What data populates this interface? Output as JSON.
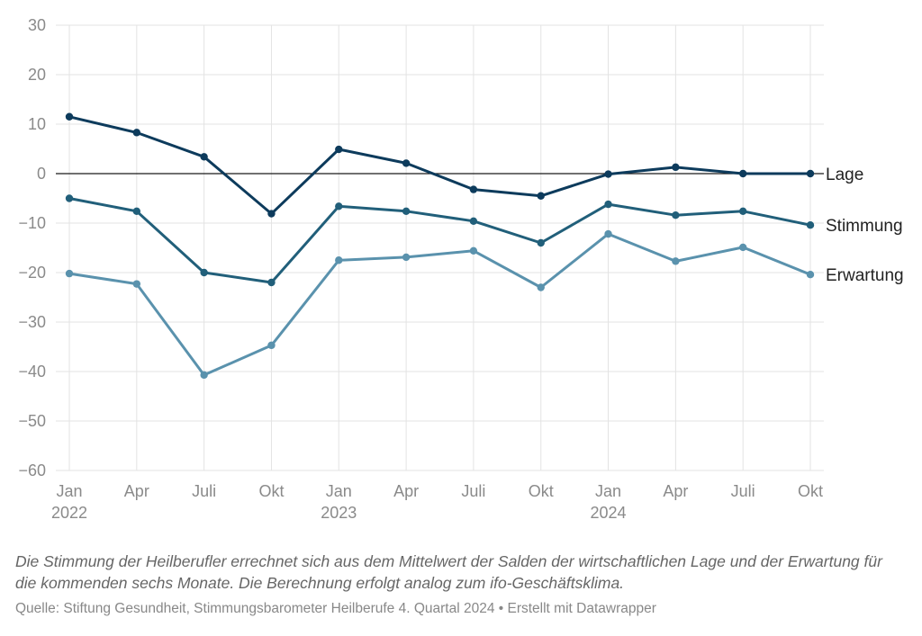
{
  "chart_data": {
    "type": "line",
    "title": "",
    "xlabel": "",
    "ylabel": "",
    "categories": [
      "Jan 2022",
      "Apr 2022",
      "Juli 2022",
      "Okt 2022",
      "Jan 2023",
      "Apr 2023",
      "Juli 2023",
      "Okt 2023",
      "Jan 2024",
      "Apr 2024",
      "Juli 2024",
      "Okt 2024"
    ],
    "x_tick_labels": [
      {
        "label": "Jan",
        "year": "2022"
      },
      {
        "label": "Apr",
        "year": ""
      },
      {
        "label": "Juli",
        "year": ""
      },
      {
        "label": "Okt",
        "year": ""
      },
      {
        "label": "Jan",
        "year": "2023"
      },
      {
        "label": "Apr",
        "year": ""
      },
      {
        "label": "Juli",
        "year": ""
      },
      {
        "label": "Okt",
        "year": ""
      },
      {
        "label": "Jan",
        "year": "2024"
      },
      {
        "label": "Apr",
        "year": ""
      },
      {
        "label": "Juli",
        "year": ""
      },
      {
        "label": "Okt",
        "year": ""
      }
    ],
    "ylim": [
      -60,
      30
    ],
    "y_ticks": [
      30,
      20,
      10,
      0,
      -10,
      -20,
      -30,
      -40,
      -50,
      -60
    ],
    "y_tick_labels": [
      "30",
      "20",
      "10",
      "0",
      "−10",
      "−20",
      "−30",
      "−40",
      "−50",
      "−60"
    ],
    "grid": true,
    "zero_line": true,
    "legend": "direct labels at line ends (right)",
    "series": [
      {
        "name": "Lage",
        "color": "#0d3b5c",
        "values": [
          11.5,
          8.3,
          3.4,
          -8.1,
          4.9,
          2.1,
          -3.2,
          -4.5,
          -0.1,
          1.3,
          0.0,
          0.0
        ]
      },
      {
        "name": "Stimmung",
        "color": "#215f7a",
        "values": [
          -5.0,
          -7.6,
          -20.0,
          -22.0,
          -6.6,
          -7.6,
          -9.6,
          -14.0,
          -6.2,
          -8.4,
          -7.6,
          -10.4
        ]
      },
      {
        "name": "Erwartung",
        "color": "#5a92ad",
        "values": [
          -20.2,
          -22.3,
          -40.7,
          -34.7,
          -17.5,
          -16.9,
          -15.6,
          -23.0,
          -12.2,
          -17.7,
          -14.9,
          -20.4
        ]
      }
    ]
  },
  "caption": "Die Stimmung der Heilberufler errechnet sich aus dem Mittelwert der Salden der wirtschaftlichen Lage und der Erwartung für die kommenden sechs Monate. Die Berechnung erfolgt analog zum ifo-Geschäftsklima.",
  "source": "Quelle: Stiftung Gesundheit, Stimmungsbarometer Heilberufe 4. Quartal 2024 • Erstellt mit Datawrapper"
}
